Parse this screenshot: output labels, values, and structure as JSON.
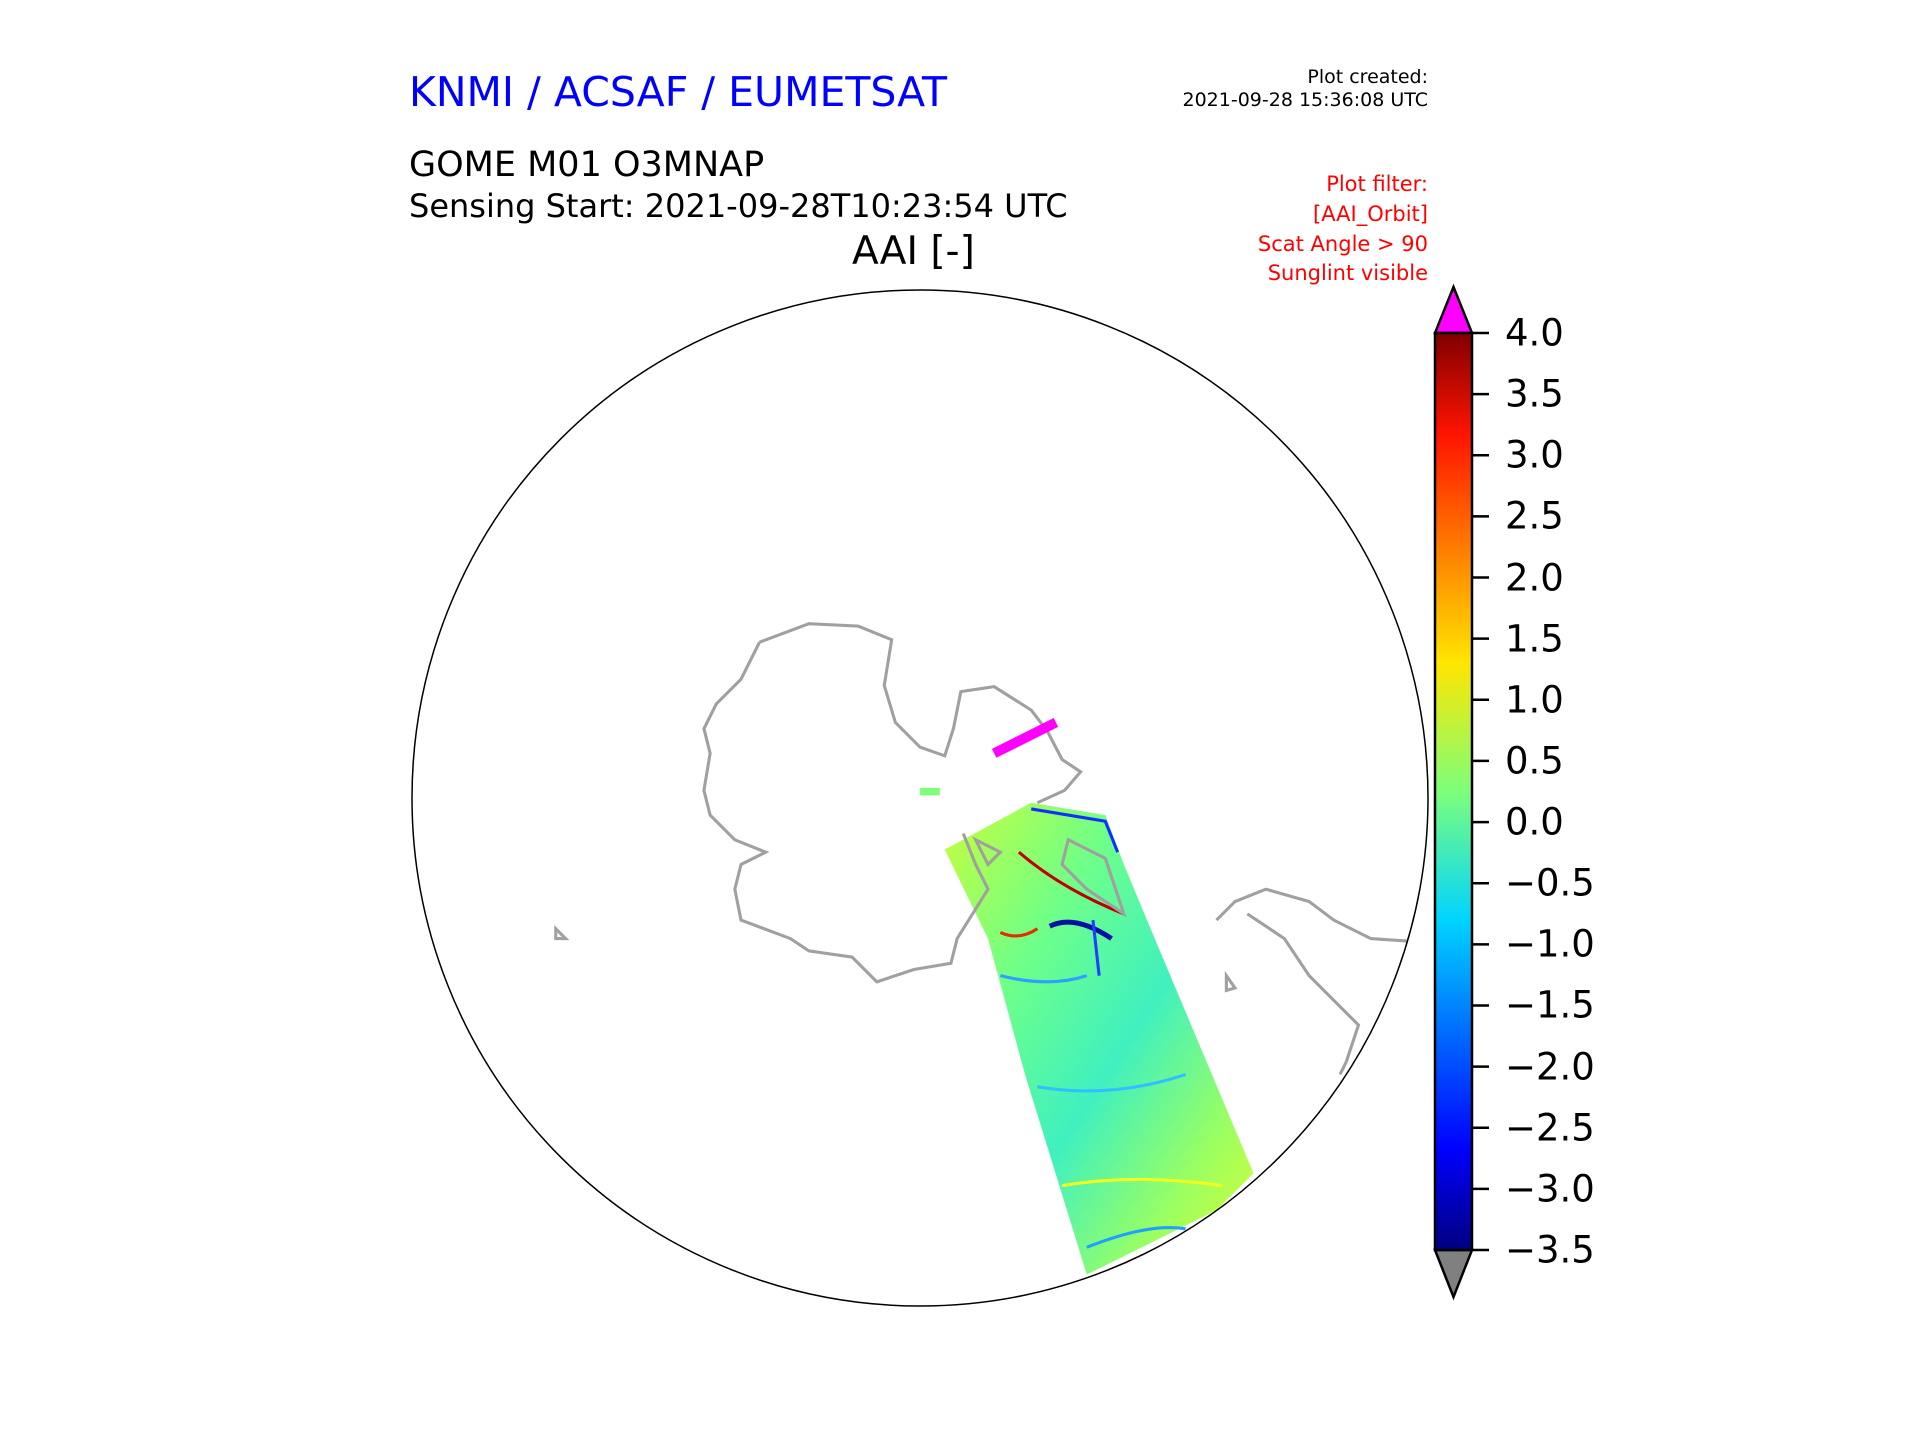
{
  "header": {
    "organisation": "KNMI / ACSAF / EUMETSAT",
    "product": "GOME M01 O3MNAP",
    "sensing_start": "Sensing Start: 2021-09-28T10:23:54 UTC",
    "variable": "AAI [-]",
    "plot_created_label": "Plot created:",
    "plot_created_time": "2021-09-28 15:36:08 UTC",
    "filter_lines": [
      "Plot filter:",
      "[AAI_Orbit]",
      "Scat Angle > 90",
      "Sunglint visible"
    ]
  },
  "chart_data": {
    "type": "heatmap",
    "projection": "south polar stereographic (orthographic disc)",
    "title": "AAI [-]",
    "colormap": "jet",
    "colorbar": {
      "min": -3.5,
      "max": 4.0,
      "ticks": [
        "4.0",
        "3.5",
        "3.0",
        "2.5",
        "2.0",
        "1.5",
        "1.0",
        "0.5",
        "0.0",
        "−0.5",
        "−1.0",
        "−1.5",
        "−2.0",
        "−2.5",
        "−3.0",
        "−3.5"
      ],
      "tick_values": [
        4.0,
        3.5,
        3.0,
        2.5,
        2.0,
        1.5,
        1.0,
        0.5,
        0.0,
        -0.5,
        -1.0,
        -1.5,
        -2.0,
        -2.5,
        -3.0,
        -3.5
      ],
      "over_color": "#ff00ff",
      "under_color": "#808080",
      "extend": "both",
      "placement": "right"
    },
    "coastline_color": "#a0a0a0",
    "swath_dominant_range": [
      -1.0,
      1.5
    ]
  }
}
